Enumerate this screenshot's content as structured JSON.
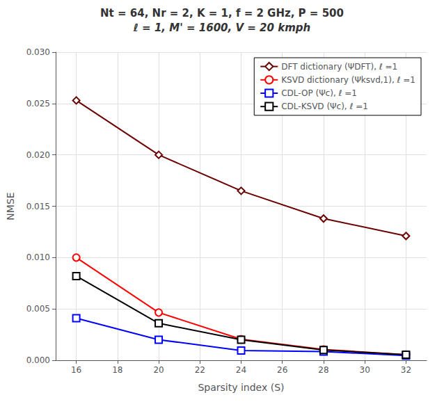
{
  "chart_data": {
    "type": "line",
    "title": "Nt = 64, Nr = 2, K = 1, f = 2 GHz, P = 500",
    "subtitle": "ℓ = 1, M' = 1600, V = 20 kmph",
    "xlabel": "Sparsity index (S)",
    "ylabel": "NMSE",
    "x": [
      16,
      20,
      24,
      28,
      32
    ],
    "xlim": [
      15,
      33
    ],
    "xticks": [
      16,
      18,
      20,
      22,
      24,
      26,
      28,
      30,
      32
    ],
    "ylim": [
      0,
      0.03
    ],
    "yticks": [
      {
        "value": 0,
        "label": "0.000"
      },
      {
        "value": 0.005,
        "label": "0.005"
      },
      {
        "value": 0.01,
        "label": "0.010"
      },
      {
        "value": 0.015,
        "label": "0.015"
      },
      {
        "value": 0.02,
        "label": "0.020"
      },
      {
        "value": 0.025,
        "label": "0.025"
      },
      {
        "value": 0.03,
        "label": "0.030"
      }
    ],
    "grid": true,
    "legend": "upper right",
    "series": [
      {
        "name": "DFT dictionary (ΨDFT), ℓ =1",
        "color": "#6B0000",
        "marker": "diamond",
        "line_style": "solid",
        "values": [
          0.0253,
          0.02,
          0.0165,
          0.0138,
          0.0121
        ]
      },
      {
        "name": "KSVD dictionary (Ψksvd,1), ℓ =1",
        "color": "#FF0000",
        "marker": "circle",
        "line_style": "solid",
        "values": [
          0.01,
          0.00465,
          0.00205,
          0.00105,
          0.00055
        ]
      },
      {
        "name": "CDL-OP (Ψc), ℓ =1",
        "color": "#0000FF",
        "marker": "square",
        "line_style": "solid",
        "values": [
          0.0041,
          0.002,
          0.00095,
          0.00085,
          0.00045
        ]
      },
      {
        "name": "CDL-KSVD (Ψc), ℓ =1",
        "color": "#000000",
        "marker": "square",
        "line_style": "solid",
        "values": [
          0.0082,
          0.0036,
          0.002,
          0.001,
          0.00055
        ]
      }
    ]
  }
}
